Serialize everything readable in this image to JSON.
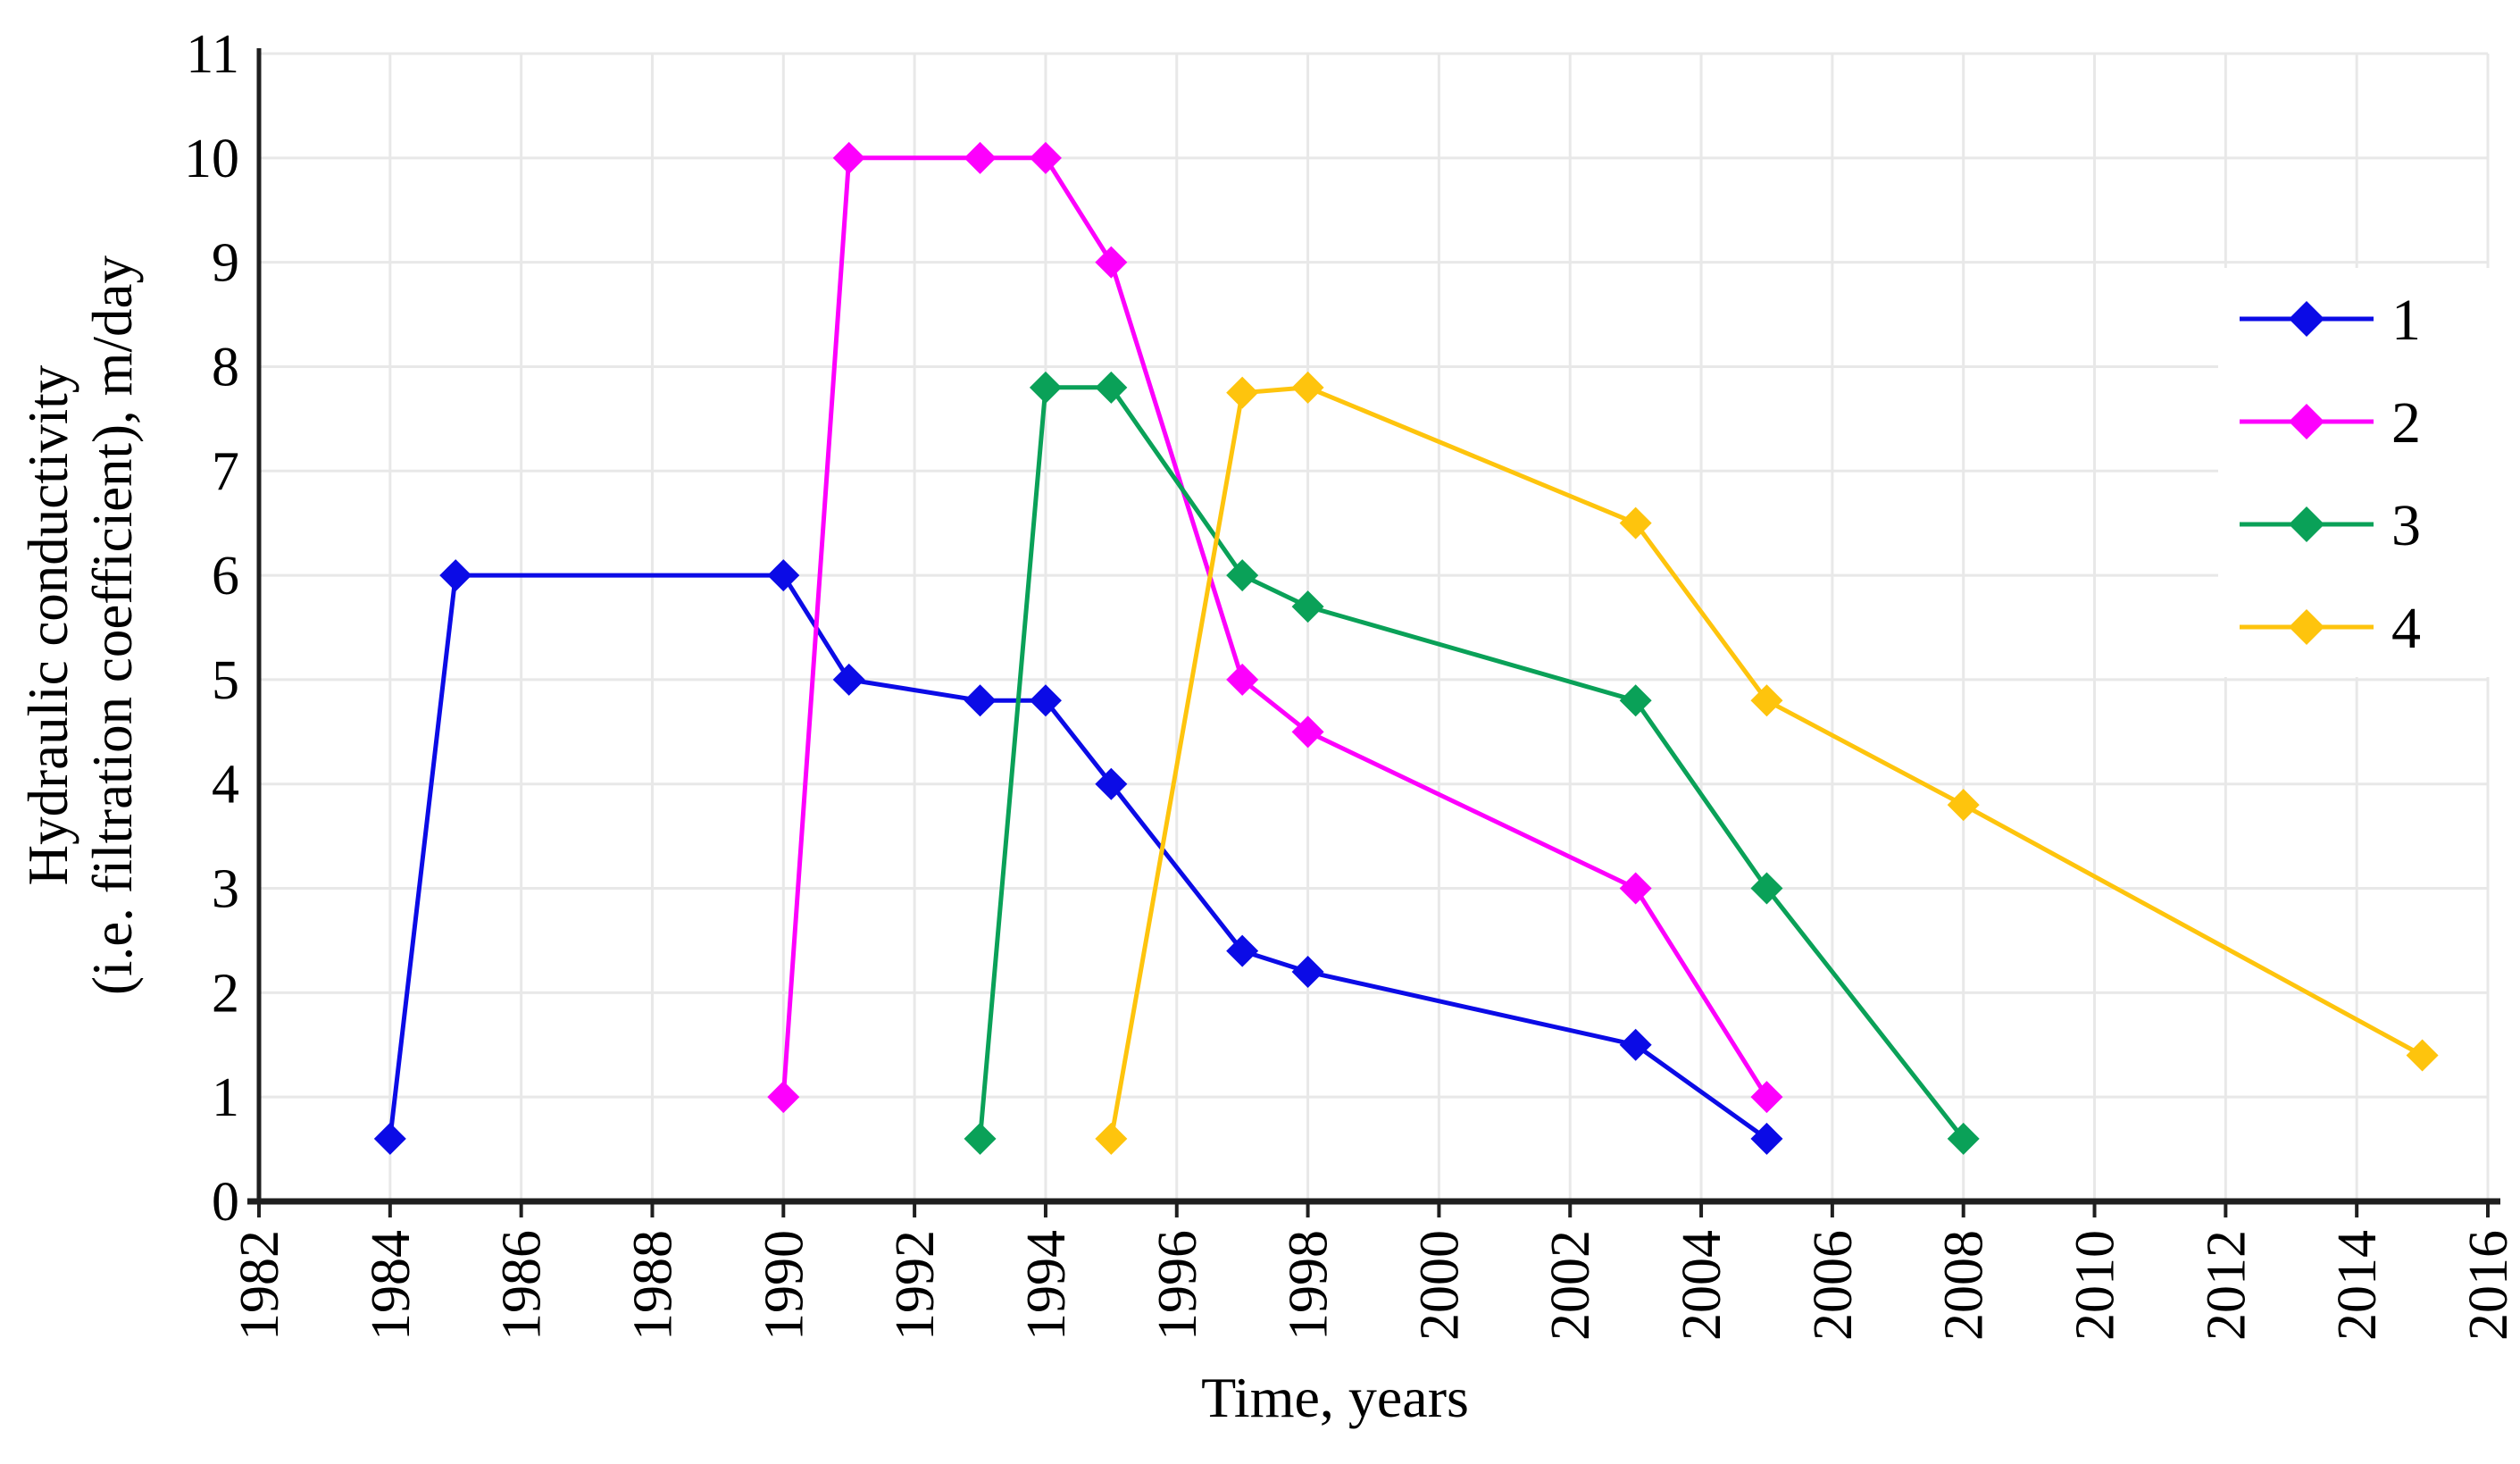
{
  "chart_data": {
    "type": "line",
    "title": "",
    "xlabel": "Time, years",
    "ylabel_lines": [
      "Hydraulic conductivity",
      "(i.e. filtration coefficient), m/day"
    ],
    "xlim": [
      1982,
      2016
    ],
    "ylim": [
      0,
      11
    ],
    "x_ticks": [
      1982,
      1984,
      1986,
      1988,
      1990,
      1992,
      1994,
      1996,
      1998,
      2000,
      2002,
      2004,
      2006,
      2008,
      2010,
      2012,
      2014,
      2016
    ],
    "y_ticks": [
      0,
      1,
      2,
      3,
      4,
      5,
      6,
      7,
      8,
      9,
      10,
      11
    ],
    "grid": true,
    "legend_position": "inside-right",
    "series": [
      {
        "name": "1",
        "color": "#0b0be6",
        "points": [
          [
            1984,
            0.6
          ],
          [
            1985,
            6
          ],
          [
            1990,
            6
          ],
          [
            1991,
            5
          ],
          [
            1993,
            4.8
          ],
          [
            1994,
            4.8
          ],
          [
            1995,
            4
          ],
          [
            1997,
            2.4
          ],
          [
            1998,
            2.2
          ],
          [
            2003,
            1.5
          ],
          [
            2005,
            0.6
          ]
        ]
      },
      {
        "name": "2",
        "color": "#fd00fd",
        "points": [
          [
            1990,
            1
          ],
          [
            1991,
            10
          ],
          [
            1993,
            10
          ],
          [
            1994,
            10
          ],
          [
            1995,
            9
          ],
          [
            1997,
            5
          ],
          [
            1998,
            4.5
          ],
          [
            2003,
            3
          ],
          [
            2005,
            1
          ]
        ]
      },
      {
        "name": "3",
        "color": "#0aa158",
        "points": [
          [
            1993,
            0.6
          ],
          [
            1994,
            7.8
          ],
          [
            1995,
            7.8
          ],
          [
            1997,
            6
          ],
          [
            1998,
            5.7
          ],
          [
            2003,
            4.8
          ],
          [
            2005,
            3
          ],
          [
            2008,
            0.6
          ]
        ]
      },
      {
        "name": "4",
        "color": "#fec40d",
        "points": [
          [
            1995,
            0.6
          ],
          [
            1997,
            7.75
          ],
          [
            1998,
            7.8
          ],
          [
            2003,
            6.5
          ],
          [
            2005,
            4.8
          ],
          [
            2008,
            3.8
          ],
          [
            2015,
            1.4
          ]
        ]
      }
    ],
    "colors": {
      "background": "#ffffff",
      "grid": "#e8e8e8",
      "axis": "#1f1f1f",
      "text": "#000000"
    }
  }
}
